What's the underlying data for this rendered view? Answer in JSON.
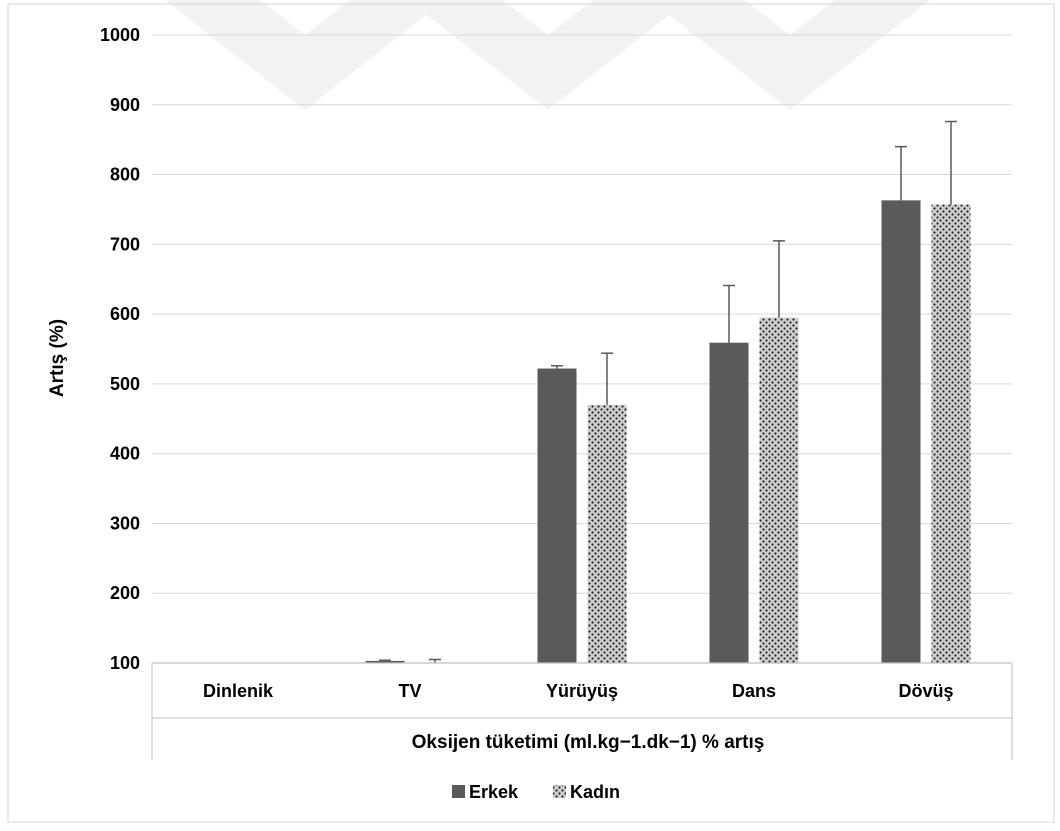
{
  "colors": {
    "erkek": "#5a5a5a",
    "kadin_base": "#cfcfcf",
    "kadin_dots": "#222222",
    "grid": "#d9d9d9",
    "error_bar": "#595959",
    "axis_line": "#bfbfbf",
    "frame": "#d4d4d4",
    "watermark": "#f2f2f2"
  },
  "chart_data": {
    "type": "bar",
    "categories": [
      "Dinlenik",
      "TV",
      "Yürüyüş",
      "Dans",
      "Dövüş"
    ],
    "series": [
      {
        "name": "Erkek",
        "pattern": "solid",
        "values": [
          100,
          103,
          522,
          559,
          763
        ],
        "error_top": [
          100,
          104,
          526,
          641,
          840
        ]
      },
      {
        "name": "Kadın",
        "pattern": "dotted",
        "values": [
          100,
          100,
          470,
          595,
          757
        ],
        "error_top": [
          100,
          105,
          544,
          705,
          876
        ]
      }
    ],
    "title": "",
    "xlabel": "Oksijen tüketimi (ml.kg−1.dk−1) % artış",
    "ylabel": "Artış (%)",
    "ylim": [
      100,
      1000
    ],
    "yticks": [
      100,
      200,
      300,
      400,
      500,
      600,
      700,
      800,
      900,
      1000
    ],
    "grid": true,
    "legend_position": "bottom-center"
  }
}
